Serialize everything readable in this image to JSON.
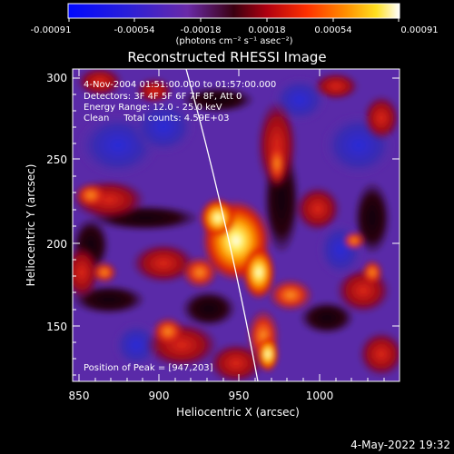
{
  "colorbar": {
    "ticks": [
      "-0.00091",
      "-0.00054",
      "-0.00018",
      "0.00018",
      "0.00054",
      "0.00091"
    ],
    "units": "(photons cm⁻² s⁻¹ asec⁻²)"
  },
  "plot": {
    "title": "Reconstructed RHESSI Image",
    "xlabel": "Heliocentric X (arcsec)",
    "ylabel": "Heliocentric Y (arcsec)",
    "xticks": [
      "850",
      "900",
      "950",
      "1000"
    ],
    "yticks": [
      "300",
      "250",
      "200",
      "150"
    ]
  },
  "annotations": {
    "time_range": "4-Nov-2004 01:51:00.000 to 01:57:00.000",
    "detectors": "Detectors: 3F 4F 5F 6F 7F 8F, Att 0",
    "energy": "Energy Range: 12.0 - 25.0 keV",
    "clean": "Clean     Total counts: 4.59E+03",
    "peak": "Position of Peak = [947,203]"
  },
  "footer": {
    "timestamp": "4-May-2022 19:32"
  },
  "colors": {
    "background": "#000000",
    "foreground": "#ffffff",
    "limb_line": "#ffffff"
  }
}
